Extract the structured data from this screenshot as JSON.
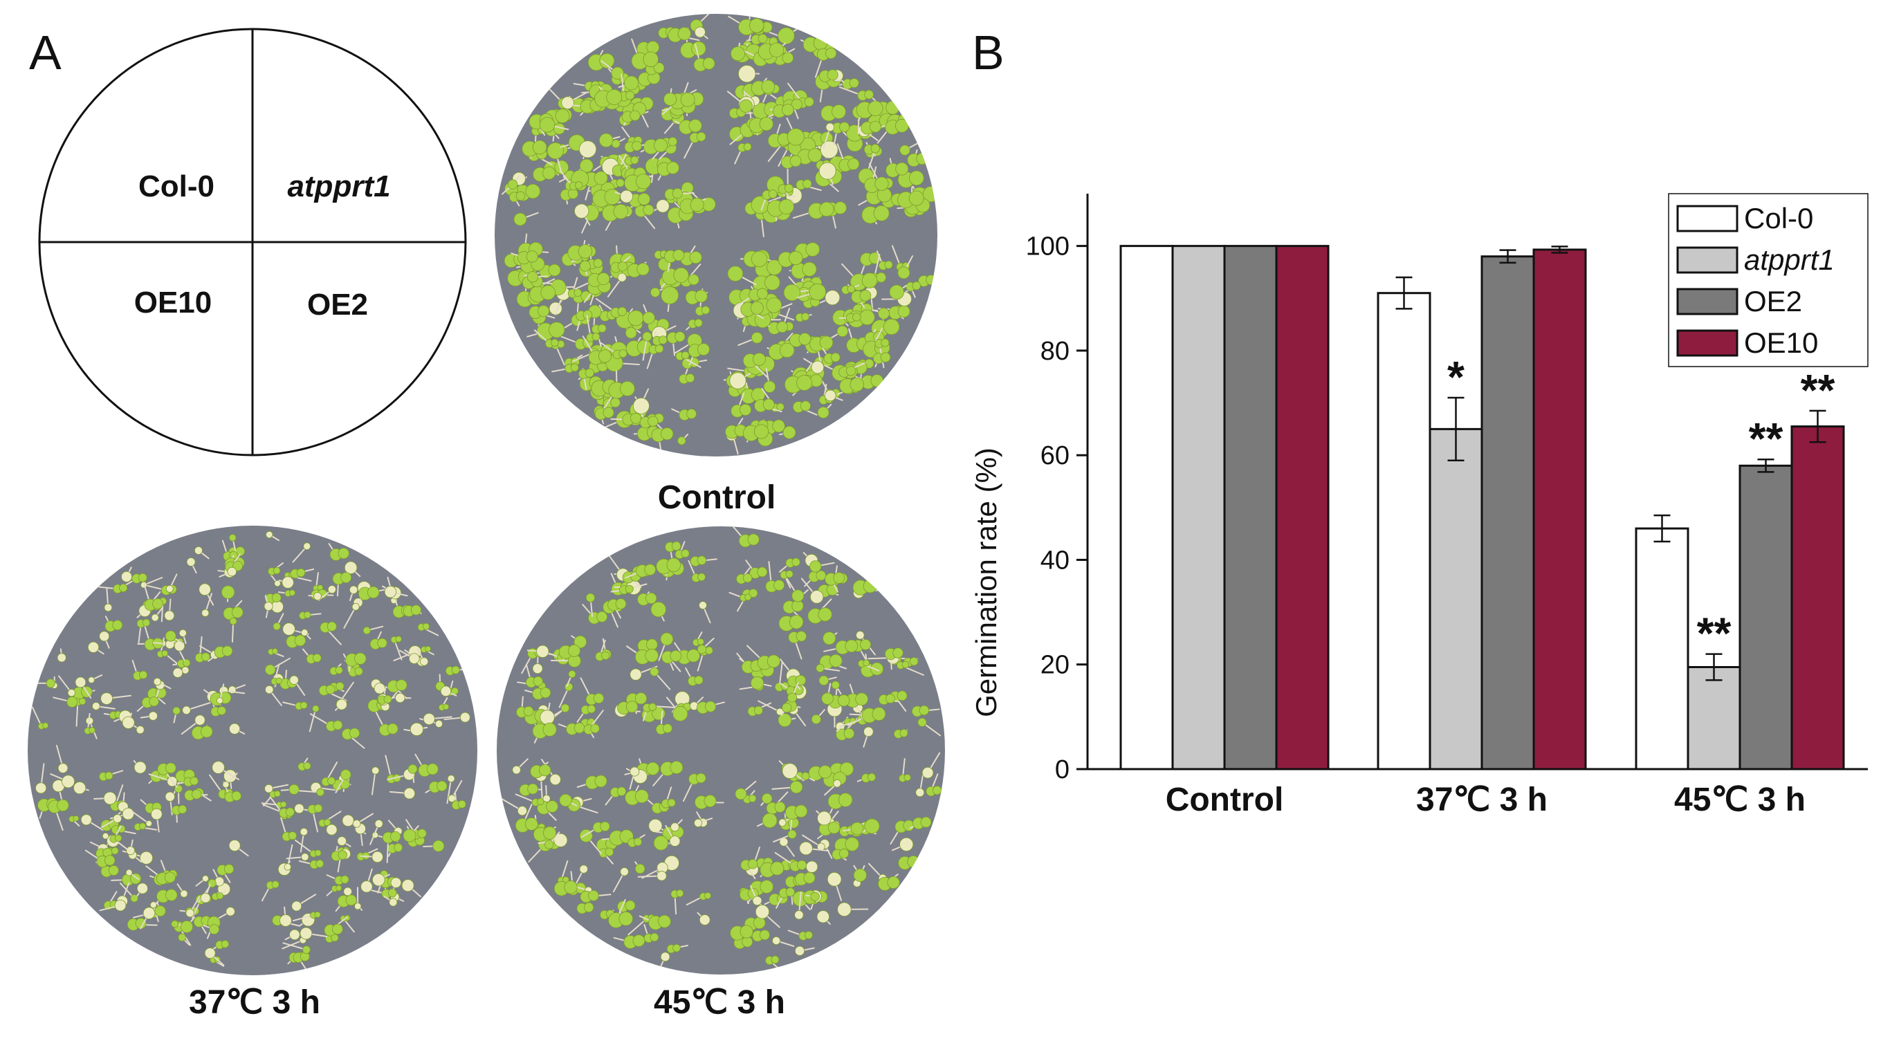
{
  "panels": {
    "a_letter": "A",
    "b_letter": "B"
  },
  "diagram": {
    "quadrants": {
      "top_left": "Col-0",
      "top_right": "atpprt1",
      "bottom_left": "OE10",
      "bottom_right": "OE2"
    }
  },
  "plates": [
    {
      "name": "control",
      "label": "Control"
    },
    {
      "name": "37c",
      "label": "37℃ 3 h"
    },
    {
      "name": "45c",
      "label": "45℃ 3 h"
    }
  ],
  "colors": {
    "plate_background": "#7a7e89",
    "seedling_green": "#a7d444",
    "seedling_pale": "#ecebc0",
    "col0": "#ffffff",
    "atpprt1": "#c8c8c8",
    "oe2": "#7a7a7a",
    "oe10": "#8e1c3e"
  },
  "chart_data": {
    "type": "bar",
    "title": "",
    "xlabel": "",
    "ylabel": "Germination rate (%)",
    "ylim": [
      0,
      110
    ],
    "yticks": [
      0,
      20,
      40,
      60,
      80,
      100
    ],
    "categories": [
      "Control",
      "37℃ 3 h",
      "45℃ 3 h"
    ],
    "series": [
      {
        "name": "Col-0",
        "italic": false,
        "color": "#ffffff",
        "values": [
          100,
          91,
          46
        ],
        "errors": [
          0,
          3,
          2.5
        ],
        "significance": [
          "",
          "",
          ""
        ]
      },
      {
        "name": "atpprt1",
        "italic": true,
        "color": "#c8c8c8",
        "values": [
          100,
          65,
          19.5
        ],
        "errors": [
          0,
          6,
          2.5
        ],
        "significance": [
          "",
          "*",
          "**"
        ]
      },
      {
        "name": "OE2",
        "italic": false,
        "color": "#7a7a7a",
        "values": [
          100,
          98,
          58
        ],
        "errors": [
          0,
          1.2,
          1.2
        ],
        "significance": [
          "",
          "",
          "**"
        ]
      },
      {
        "name": "OE10",
        "italic": false,
        "color": "#8e1c3e",
        "values": [
          100,
          99.3,
          65.5
        ],
        "errors": [
          0,
          0.6,
          3
        ],
        "significance": [
          "",
          "",
          "**"
        ]
      }
    ],
    "legend_position": "top-right"
  }
}
